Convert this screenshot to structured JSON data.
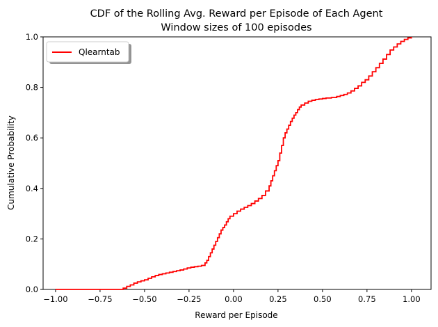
{
  "chart_data": {
    "type": "line",
    "title": "CDF of the Rolling Avg. Reward per Episode of Each Agent",
    "subtitle": "Window sizes of 100 episodes",
    "xlabel": "Reward per Episode",
    "ylabel": "Cumulative Probability",
    "xlim": [
      -1.07,
      1.11
    ],
    "ylim": [
      0.0,
      1.0
    ],
    "x_ticks": [
      -1.0,
      -0.75,
      -0.5,
      -0.25,
      0.0,
      0.25,
      0.5,
      0.75,
      1.0
    ],
    "x_tick_labels": [
      "−1.00",
      "−0.75",
      "−0.50",
      "−0.25",
      "0.00",
      "0.25",
      "0.50",
      "0.75",
      "1.00"
    ],
    "y_ticks": [
      0.0,
      0.2,
      0.4,
      0.6,
      0.8,
      1.0
    ],
    "y_tick_labels": [
      "0.0",
      "0.2",
      "0.4",
      "0.6",
      "0.8",
      "1.0"
    ],
    "grid": false,
    "legend": {
      "placement": "top-left",
      "shadow": true
    },
    "drawstyle": "steps",
    "series": [
      {
        "name": "Qlearntab",
        "color": "#ff0000",
        "points": [
          [
            -1.0,
            0.0
          ],
          [
            -0.64,
            0.0
          ],
          [
            -0.62,
            0.005
          ],
          [
            -0.6,
            0.012
          ],
          [
            -0.58,
            0.018
          ],
          [
            -0.56,
            0.025
          ],
          [
            -0.54,
            0.03
          ],
          [
            -0.52,
            0.034
          ],
          [
            -0.5,
            0.038
          ],
          [
            -0.48,
            0.044
          ],
          [
            -0.46,
            0.05
          ],
          [
            -0.44,
            0.055
          ],
          [
            -0.42,
            0.059
          ],
          [
            -0.4,
            0.062
          ],
          [
            -0.38,
            0.065
          ],
          [
            -0.36,
            0.068
          ],
          [
            -0.34,
            0.071
          ],
          [
            -0.32,
            0.074
          ],
          [
            -0.3,
            0.077
          ],
          [
            -0.28,
            0.081
          ],
          [
            -0.26,
            0.085
          ],
          [
            -0.24,
            0.088
          ],
          [
            -0.22,
            0.09
          ],
          [
            -0.2,
            0.092
          ],
          [
            -0.18,
            0.095
          ],
          [
            -0.16,
            0.105
          ],
          [
            -0.15,
            0.115
          ],
          [
            -0.14,
            0.13
          ],
          [
            -0.13,
            0.145
          ],
          [
            -0.12,
            0.16
          ],
          [
            -0.11,
            0.175
          ],
          [
            -0.1,
            0.19
          ],
          [
            -0.09,
            0.205
          ],
          [
            -0.08,
            0.22
          ],
          [
            -0.07,
            0.235
          ],
          [
            -0.06,
            0.245
          ],
          [
            -0.05,
            0.255
          ],
          [
            -0.04,
            0.268
          ],
          [
            -0.03,
            0.28
          ],
          [
            -0.02,
            0.29
          ],
          [
            0.0,
            0.3
          ],
          [
            0.02,
            0.31
          ],
          [
            0.04,
            0.318
          ],
          [
            0.06,
            0.325
          ],
          [
            0.08,
            0.332
          ],
          [
            0.1,
            0.34
          ],
          [
            0.12,
            0.35
          ],
          [
            0.14,
            0.36
          ],
          [
            0.16,
            0.372
          ],
          [
            0.18,
            0.39
          ],
          [
            0.2,
            0.41
          ],
          [
            0.21,
            0.43
          ],
          [
            0.22,
            0.45
          ],
          [
            0.23,
            0.47
          ],
          [
            0.24,
            0.49
          ],
          [
            0.25,
            0.51
          ],
          [
            0.26,
            0.54
          ],
          [
            0.27,
            0.57
          ],
          [
            0.28,
            0.6
          ],
          [
            0.29,
            0.62
          ],
          [
            0.3,
            0.635
          ],
          [
            0.31,
            0.65
          ],
          [
            0.32,
            0.665
          ],
          [
            0.33,
            0.678
          ],
          [
            0.34,
            0.69
          ],
          [
            0.35,
            0.7
          ],
          [
            0.36,
            0.712
          ],
          [
            0.37,
            0.722
          ],
          [
            0.38,
            0.73
          ],
          [
            0.4,
            0.738
          ],
          [
            0.42,
            0.745
          ],
          [
            0.44,
            0.749
          ],
          [
            0.46,
            0.752
          ],
          [
            0.48,
            0.754
          ],
          [
            0.5,
            0.756
          ],
          [
            0.52,
            0.758
          ],
          [
            0.55,
            0.76
          ],
          [
            0.58,
            0.764
          ],
          [
            0.6,
            0.768
          ],
          [
            0.62,
            0.772
          ],
          [
            0.64,
            0.778
          ],
          [
            0.66,
            0.786
          ],
          [
            0.68,
            0.796
          ],
          [
            0.7,
            0.806
          ],
          [
            0.72,
            0.82
          ],
          [
            0.74,
            0.83
          ],
          [
            0.76,
            0.845
          ],
          [
            0.78,
            0.862
          ],
          [
            0.8,
            0.878
          ],
          [
            0.82,
            0.895
          ],
          [
            0.84,
            0.912
          ],
          [
            0.86,
            0.93
          ],
          [
            0.88,
            0.948
          ],
          [
            0.9,
            0.96
          ],
          [
            0.92,
            0.972
          ],
          [
            0.94,
            0.982
          ],
          [
            0.96,
            0.99
          ],
          [
            0.98,
            0.996
          ],
          [
            1.0,
            1.0
          ]
        ]
      }
    ]
  }
}
